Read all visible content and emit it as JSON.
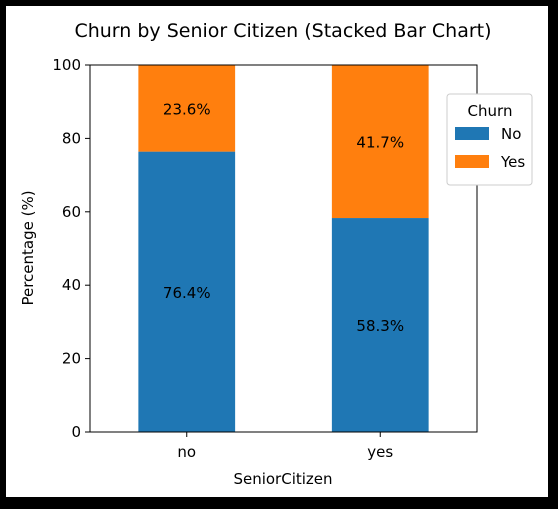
{
  "chart_data": {
    "type": "bar",
    "stacked": true,
    "title": "Churn by Senior Citizen (Stacked Bar Chart)",
    "xlabel": "SeniorCitizen",
    "ylabel": "Percentage (%)",
    "categories": [
      "no",
      "yes"
    ],
    "ylim": [
      0,
      100
    ],
    "yticks": [
      "0",
      "20",
      "40",
      "60",
      "80",
      "100"
    ],
    "series": [
      {
        "name": "No",
        "color": "#1f77b4",
        "values": [
          76.4,
          58.3
        ],
        "labels": [
          "76.4%",
          "58.3%"
        ]
      },
      {
        "name": "Yes",
        "color": "#ff7f0e",
        "values": [
          23.6,
          41.7
        ],
        "labels": [
          "23.6%",
          "41.7%"
        ]
      }
    ],
    "legend": {
      "title": "Churn",
      "position": "upper right"
    },
    "grid": false
  }
}
